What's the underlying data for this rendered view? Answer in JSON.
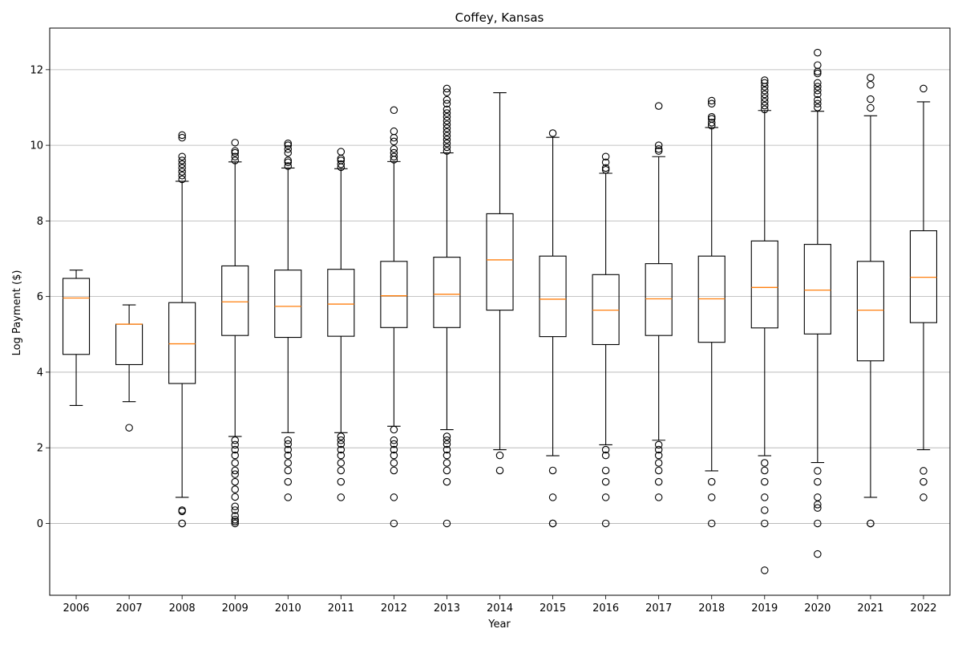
{
  "chart_data": {
    "type": "box",
    "title": "Coffey, Kansas",
    "xlabel": "Year",
    "ylabel": "Log Payment ($)",
    "ylim": [
      -1.9,
      13.1
    ],
    "yticks": [
      0,
      2,
      4,
      6,
      8,
      10,
      12
    ],
    "grid": "y-major",
    "colors": {
      "box": "#000000",
      "median": "#ff7f0e",
      "grid": "#b0b0b0"
    },
    "categories": [
      "2006",
      "2007",
      "2008",
      "2009",
      "2010",
      "2011",
      "2012",
      "2013",
      "2014",
      "2015",
      "2016",
      "2017",
      "2018",
      "2019",
      "2020",
      "2021",
      "2022"
    ],
    "boxes": [
      {
        "q1": 4.47,
        "median": 5.96,
        "q3": 6.48,
        "whislo": 3.12,
        "whishi": 6.7,
        "fliers": []
      },
      {
        "q1": 4.2,
        "median": 5.27,
        "q3": 5.27,
        "whislo": 3.22,
        "whishi": 5.78,
        "fliers": [
          2.53
        ]
      },
      {
        "q1": 3.7,
        "median": 4.75,
        "q3": 5.84,
        "whislo": 0.69,
        "whishi": 9.05,
        "fliers": [
          0.0,
          0.0,
          0.32,
          0.35,
          9.1,
          9.2,
          9.3,
          9.4,
          9.5,
          9.6,
          9.7,
          10.2,
          10.27
        ]
      },
      {
        "q1": 4.97,
        "median": 5.86,
        "q3": 6.81,
        "whislo": 2.3,
        "whishi": 9.56,
        "fliers": [
          0.0,
          0.05,
          0.1,
          0.2,
          0.35,
          0.45,
          0.7,
          0.9,
          1.1,
          1.3,
          1.4,
          1.6,
          1.8,
          1.95,
          2.08,
          2.2,
          9.6,
          9.7,
          9.8,
          9.85,
          10.07
        ]
      },
      {
        "q1": 4.92,
        "median": 5.74,
        "q3": 6.7,
        "whislo": 2.4,
        "whishi": 9.4,
        "fliers": [
          0.69,
          1.1,
          1.4,
          1.6,
          1.8,
          1.95,
          2.1,
          2.2,
          9.45,
          9.55,
          9.6,
          9.8,
          9.9,
          10.0,
          10.05
        ]
      },
      {
        "q1": 4.95,
        "median": 5.8,
        "q3": 6.72,
        "whislo": 2.4,
        "whishi": 9.38,
        "fliers": [
          0.69,
          1.1,
          1.4,
          1.6,
          1.8,
          1.95,
          2.1,
          2.2,
          2.3,
          9.42,
          9.5,
          9.6,
          9.65,
          9.83
        ]
      },
      {
        "q1": 5.18,
        "median": 6.02,
        "q3": 6.93,
        "whislo": 2.57,
        "whishi": 9.57,
        "fliers": [
          0.0,
          0.69,
          1.4,
          1.6,
          1.8,
          1.95,
          2.1,
          2.2,
          2.48,
          9.62,
          9.7,
          9.8,
          9.9,
          10.1,
          10.2,
          10.37,
          10.93
        ]
      },
      {
        "q1": 5.18,
        "median": 6.06,
        "q3": 7.04,
        "whislo": 2.48,
        "whishi": 9.8,
        "fliers": [
          0.0,
          1.1,
          1.4,
          1.6,
          1.8,
          1.95,
          2.1,
          2.2,
          2.3,
          9.85,
          9.95,
          10.05,
          10.15,
          10.25,
          10.35,
          10.45,
          10.55,
          10.65,
          10.75,
          10.85,
          10.95,
          11.1,
          11.2,
          11.4,
          11.5
        ]
      },
      {
        "q1": 5.64,
        "median": 6.97,
        "q3": 8.19,
        "whislo": 1.95,
        "whishi": 11.39,
        "fliers": [
          1.4,
          1.8
        ]
      },
      {
        "q1": 4.94,
        "median": 5.93,
        "q3": 7.07,
        "whislo": 1.79,
        "whishi": 10.21,
        "fliers": [
          0.0,
          0.0,
          0.69,
          1.4,
          10.32
        ]
      },
      {
        "q1": 4.73,
        "median": 5.64,
        "q3": 6.58,
        "whislo": 2.08,
        "whishi": 9.26,
        "fliers": [
          0.0,
          0.69,
          1.1,
          1.4,
          1.8,
          1.95,
          9.35,
          9.4,
          9.55,
          9.7
        ]
      },
      {
        "q1": 4.97,
        "median": 5.94,
        "q3": 6.87,
        "whislo": 2.2,
        "whishi": 9.7,
        "fliers": [
          0.69,
          1.1,
          1.4,
          1.6,
          1.8,
          1.95,
          2.08,
          9.85,
          9.9,
          10.0,
          11.04
        ]
      },
      {
        "q1": 4.79,
        "median": 5.94,
        "q3": 7.07,
        "whislo": 1.39,
        "whishi": 10.47,
        "fliers": [
          0.0,
          0.69,
          1.1,
          10.52,
          10.6,
          10.7,
          10.75,
          11.1,
          11.18
        ]
      },
      {
        "q1": 5.17,
        "median": 6.24,
        "q3": 7.47,
        "whislo": 1.79,
        "whishi": 10.92,
        "fliers": [
          -1.24,
          0.0,
          0.35,
          0.69,
          1.1,
          1.4,
          1.6,
          10.95,
          11.05,
          11.15,
          11.25,
          11.35,
          11.45,
          11.55,
          11.65,
          11.72
        ]
      },
      {
        "q1": 5.01,
        "median": 6.17,
        "q3": 7.38,
        "whislo": 1.61,
        "whishi": 10.9,
        "fliers": [
          -0.81,
          0.0,
          0.41,
          0.5,
          0.69,
          1.1,
          1.39,
          11.0,
          11.1,
          11.2,
          11.35,
          11.45,
          11.55,
          11.65,
          11.9,
          11.95,
          12.12,
          12.45
        ]
      },
      {
        "q1": 4.3,
        "median": 5.64,
        "q3": 6.93,
        "whislo": 0.69,
        "whishi": 10.78,
        "fliers": [
          0.0,
          0.0,
          10.99,
          11.22,
          11.6,
          11.79
        ]
      },
      {
        "q1": 5.31,
        "median": 6.51,
        "q3": 7.74,
        "whislo": 1.95,
        "whishi": 11.15,
        "fliers": [
          0.69,
          1.1,
          1.39,
          11.5
        ]
      }
    ]
  }
}
